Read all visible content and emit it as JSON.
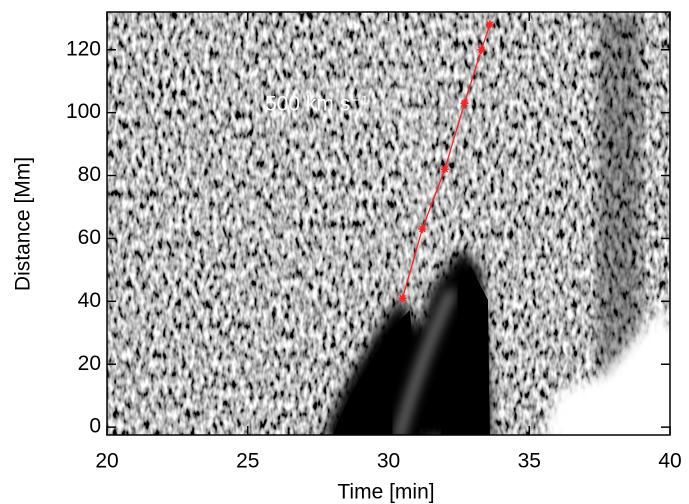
{
  "chart_data": {
    "type": "line",
    "x_label": "Time [min]",
    "y_label": "Distance [Mm]",
    "annotation": "500 km s⁻¹",
    "x": [
      30.5,
      31.2,
      32.0,
      32.7,
      33.3,
      33.6
    ],
    "series": [
      {
        "name": null,
        "color": "#ff2020",
        "values": [
          41,
          63,
          82,
          103,
          120,
          128
        ]
      }
    ],
    "xlim": [
      20,
      40
    ],
    "xticks": [
      20,
      25,
      30,
      35,
      40
    ],
    "ylim": [
      -2.5,
      132
    ],
    "yticks": [
      0,
      20,
      40,
      60,
      80,
      100,
      120
    ]
  }
}
